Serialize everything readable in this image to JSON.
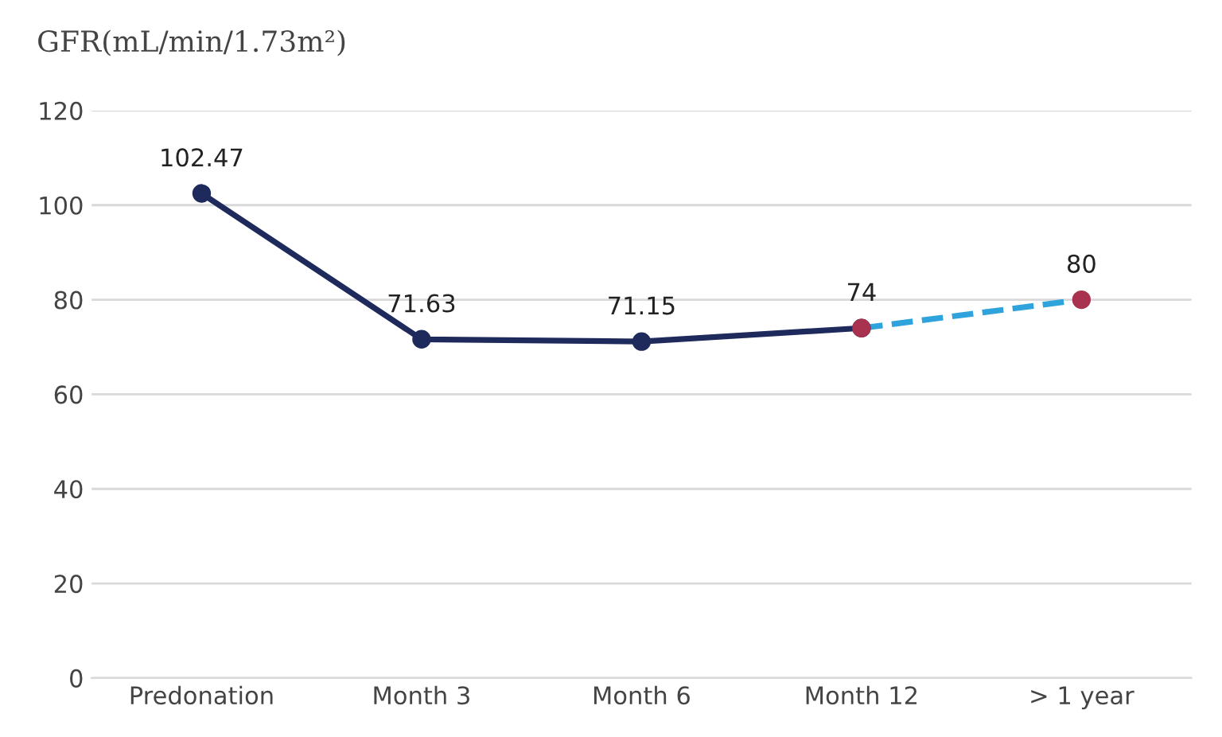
{
  "chart_data": {
    "type": "line",
    "ylabel": "GFR(mL/min/1.73m²)",
    "categories": [
      "Predonation",
      "Month 3",
      "Month 6",
      "Month 12",
      "> 1 year"
    ],
    "series": [
      {
        "color": "#1f2a5c",
        "values": [
          102.47,
          71.63,
          71.15,
          74,
          null
        ],
        "line_style": "solid",
        "value_labels": [
          "102.47",
          "71.63",
          "71.15",
          "74",
          null
        ]
      },
      {
        "color": "#2ea3dc",
        "values": [
          null,
          null,
          null,
          74,
          80
        ],
        "line_style": "dashed",
        "colors": [
          null,
          null,
          null,
          "#a8324f",
          "#a8324f"
        ],
        "value_labels": [
          null,
          null,
          null,
          null,
          "80"
        ]
      }
    ],
    "ylim": [
      0,
      120
    ],
    "yticks": [
      0,
      20,
      40,
      60,
      80,
      100,
      120
    ],
    "grid": "y",
    "marker": "circle"
  }
}
